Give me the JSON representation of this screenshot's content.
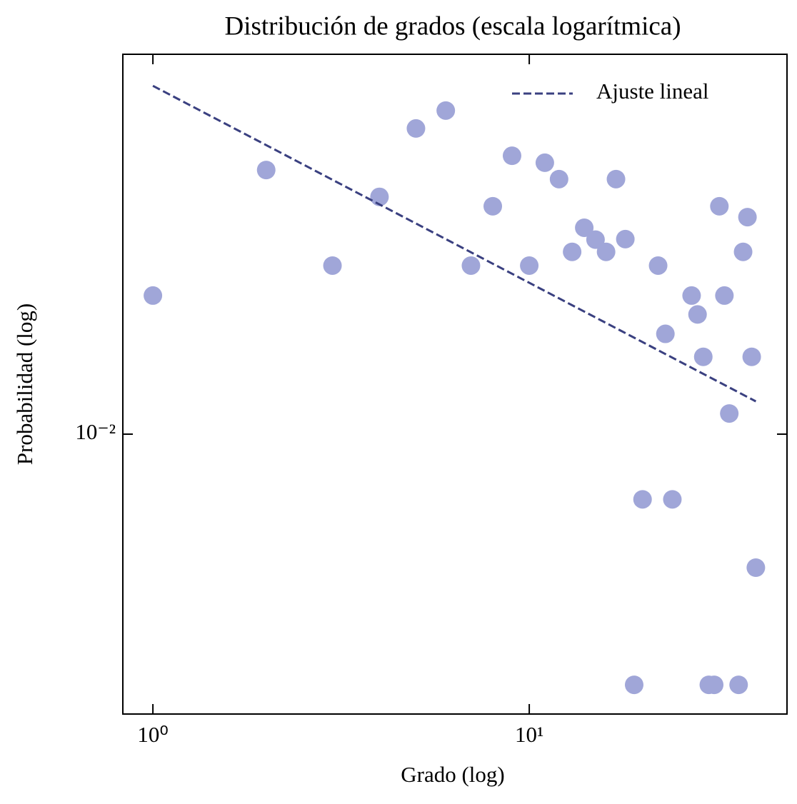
{
  "chart_data": {
    "type": "scatter",
    "title": "Distribución de grados (escala logarítmica)",
    "xlabel": "Grado (log)",
    "ylabel": "Probabilidad (log)",
    "xscale": "log",
    "yscale": "log",
    "xlim": [
      0.832,
      48.4
    ],
    "ylim": [
      0.00191,
      0.0946
    ],
    "xticks": [
      {
        "value": 1,
        "label": "10⁰"
      },
      {
        "value": 10,
        "label": "10¹"
      }
    ],
    "yticks": [
      {
        "value": 0.01,
        "label": "10⁻²"
      }
    ],
    "points": {
      "color": "#a0a6d8",
      "x": [
        1,
        2,
        3,
        4,
        5,
        6,
        7,
        8,
        9,
        10,
        11,
        12,
        13,
        14,
        15,
        16,
        17,
        18,
        19,
        20,
        22,
        23,
        24,
        27,
        28,
        29,
        30,
        31,
        32,
        33,
        34,
        36,
        37,
        38,
        39,
        40
      ],
      "y": [
        0.0227,
        0.0477,
        0.0271,
        0.0407,
        0.061,
        0.0678,
        0.0271,
        0.0385,
        0.0519,
        0.0271,
        0.0498,
        0.0452,
        0.0294,
        0.0339,
        0.0316,
        0.0294,
        0.0452,
        0.0317,
        0.00227,
        0.0068,
        0.0271,
        0.0181,
        0.0068,
        0.0227,
        0.0203,
        0.0158,
        0.00227,
        0.00227,
        0.0385,
        0.0227,
        0.0113,
        0.00227,
        0.0294,
        0.0361,
        0.0158,
        0.00454
      ]
    },
    "fit": {
      "name": "Ajuste lineal",
      "color": "#3a4080",
      "linestyle": "dashed",
      "x": [
        1,
        40
      ],
      "y": [
        0.0785,
        0.01214
      ]
    },
    "legend": "upper right"
  }
}
